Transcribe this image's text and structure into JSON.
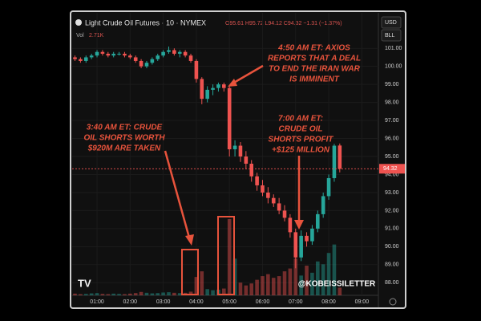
{
  "chart_data": {
    "type": "candlestick",
    "title": "Light Crude Oil Futures · 10 · NYMEX",
    "ohlc_label": "O95.61 H95.72 L94.12 C94.32 −1.31 (−1.37%)",
    "volume_label": "Vol",
    "volume_last": "2.71K",
    "currency": "USD",
    "unit": "BLL",
    "watermark": "@KOBEISSILETTER",
    "annotations": [
      {
        "lines": [
          "4:50 AM ET: AXIOS",
          "REPORTS THAT A DEAL",
          "TO END THE IRAN WAR",
          "IS IMMINENT"
        ]
      },
      {
        "lines": [
          "3:40 AM ET: CRUDE",
          "OIL SHORTS WORTH",
          "$920M ARE TAKEN"
        ]
      },
      {
        "lines": [
          "7:00 AM ET:",
          "CRUDE OIL",
          "SHORTS PROFIT",
          "+$125 MILLION"
        ]
      }
    ],
    "up_color": "#26a69a",
    "down_color": "#ef5350",
    "x": [
      20,
      30,
      40,
      50,
      60,
      70,
      80,
      90,
      100,
      110,
      120,
      130,
      140,
      150,
      160,
      170,
      180,
      190,
      200,
      210,
      220,
      230,
      240,
      250,
      260,
      270,
      280,
      290,
      300,
      310,
      320,
      330,
      340,
      350,
      360,
      370,
      380,
      390,
      400,
      410,
      420,
      430,
      440,
      450,
      460,
      470,
      480,
      490,
      500
    ],
    "open": [
      100.5,
      100.4,
      100.3,
      100.5,
      100.6,
      100.8,
      100.7,
      100.6,
      100.7,
      100.7,
      100.6,
      100.5,
      100.3,
      100.0,
      100.2,
      100.4,
      100.6,
      100.8,
      100.9,
      100.7,
      100.8,
      100.6,
      100.3,
      99.3,
      98.2,
      98.7,
      98.8,
      99.0,
      98.8,
      95.4,
      95.6,
      95.0,
      94.6,
      93.9,
      93.4,
      93.0,
      92.7,
      92.4,
      92.0,
      91.6,
      90.8,
      89.4,
      90.6,
      90.3,
      91.0,
      91.8,
      92.8,
      93.8,
      95.61
    ],
    "high": [
      100.6,
      100.5,
      100.6,
      100.7,
      100.9,
      100.9,
      100.8,
      100.8,
      100.8,
      100.8,
      100.7,
      100.6,
      100.4,
      100.3,
      100.5,
      100.7,
      100.9,
      101.1,
      101.0,
      100.9,
      100.9,
      100.7,
      100.4,
      99.4,
      98.9,
      99.0,
      99.1,
      99.1,
      98.9,
      95.9,
      95.8,
      95.3,
      94.8,
      94.1,
      93.7,
      93.3,
      92.9,
      92.7,
      92.3,
      91.8,
      91.0,
      90.9,
      90.8,
      91.2,
      92.0,
      93.0,
      94.0,
      95.7,
      95.72
    ],
    "low": [
      100.3,
      100.2,
      100.2,
      100.4,
      100.5,
      100.6,
      100.5,
      100.5,
      100.6,
      100.5,
      100.4,
      100.2,
      99.9,
      99.9,
      100.1,
      100.3,
      100.5,
      100.7,
      100.6,
      100.5,
      100.5,
      100.2,
      99.1,
      97.9,
      98.0,
      98.4,
      98.6,
      98.6,
      95.0,
      95.0,
      94.7,
      94.3,
      93.6,
      93.1,
      92.8,
      92.4,
      92.2,
      91.8,
      91.4,
      90.5,
      88.8,
      89.2,
      90.0,
      90.1,
      90.8,
      91.6,
      92.6,
      93.6,
      94.12
    ],
    "close": [
      100.4,
      100.3,
      100.5,
      100.6,
      100.8,
      100.7,
      100.6,
      100.7,
      100.7,
      100.6,
      100.5,
      100.3,
      100.0,
      100.2,
      100.4,
      100.6,
      100.8,
      100.9,
      100.7,
      100.8,
      100.6,
      100.3,
      99.3,
      98.2,
      98.7,
      98.8,
      99.0,
      98.8,
      95.4,
      95.6,
      95.0,
      94.6,
      93.9,
      93.4,
      93.0,
      92.7,
      92.4,
      92.0,
      91.6,
      90.8,
      89.4,
      90.6,
      90.3,
      91.0,
      91.8,
      92.8,
      93.8,
      95.6,
      94.32
    ],
    "volume": [
      0.6,
      0.4,
      0.5,
      0.7,
      0.8,
      0.5,
      0.4,
      0.6,
      0.5,
      0.4,
      0.6,
      0.8,
      1.2,
      0.9,
      0.7,
      0.8,
      1.0,
      1.1,
      0.9,
      0.8,
      0.9,
      1.3,
      6.5,
      8.5,
      2.2,
      1.8,
      2.0,
      2.4,
      27,
      13,
      4.5,
      3.5,
      4.2,
      5.5,
      6.8,
      7.5,
      6.2,
      6.8,
      8.5,
      9.5,
      13,
      7,
      10.5,
      8,
      12,
      11,
      15,
      18,
      2.71
    ],
    "xlim": [
      12,
      570
    ],
    "xticks": [
      {
        "value": 60,
        "label": "01:00"
      },
      {
        "value": 120,
        "label": "02:00"
      },
      {
        "value": 180,
        "label": "03:00"
      },
      {
        "value": 240,
        "label": "04:00"
      },
      {
        "value": 300,
        "label": "05:00"
      },
      {
        "value": 360,
        "label": "06:00"
      },
      {
        "value": 420,
        "label": "07:00"
      },
      {
        "value": 480,
        "label": "08:00"
      },
      {
        "value": 540,
        "label": "09:00"
      }
    ],
    "ylim": [
      87.3,
      101.9
    ],
    "yticks": [
      {
        "value": 88,
        "label": "88.00"
      },
      {
        "value": 89,
        "label": "89.00"
      },
      {
        "value": 90,
        "label": "90.00"
      },
      {
        "value": 91,
        "label": "91.00"
      },
      {
        "value": 92,
        "label": "92.00"
      },
      {
        "value": 93,
        "label": "93.00"
      },
      {
        "value": 94,
        "label": "94.00"
      },
      {
        "value": 95,
        "label": "95.00"
      },
      {
        "value": 96,
        "label": "96.00"
      },
      {
        "value": 97,
        "label": "97.00"
      },
      {
        "value": 98,
        "label": "98.00"
      },
      {
        "value": 99,
        "label": "99.00"
      },
      {
        "value": 100,
        "label": "100.00"
      },
      {
        "value": 101,
        "label": "101.00"
      }
    ]
  }
}
